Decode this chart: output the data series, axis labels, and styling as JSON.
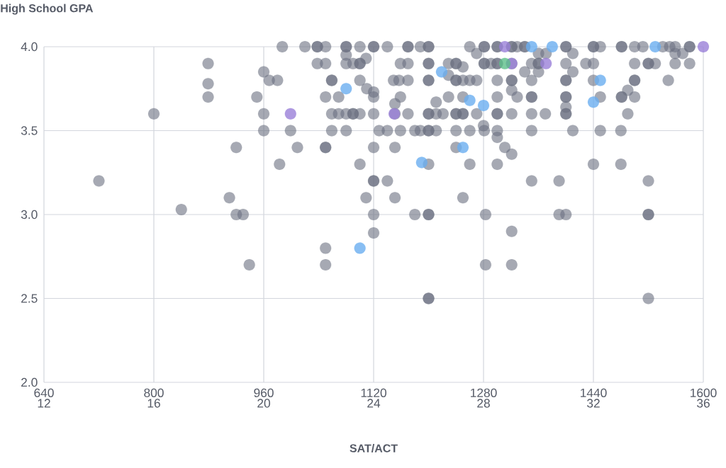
{
  "chart_data": {
    "type": "scatter",
    "ylabel": "High School GPA",
    "xlabel": "SAT/ACT",
    "xlim": [
      640,
      1600
    ],
    "xticks": [
      640,
      800,
      960,
      1120,
      1280,
      1440,
      1600
    ],
    "x2lim": [
      12,
      36
    ],
    "x2ticks": [
      12,
      16,
      20,
      24,
      28,
      32,
      36
    ],
    "ylim": [
      2,
      4
    ],
    "yticks": [
      {
        "value": 2,
        "label": "2.0"
      },
      {
        "value": 2.5,
        "label": "2.5"
      },
      {
        "value": 3,
        "label": "3.0"
      },
      {
        "value": 3.5,
        "label": "3.5"
      },
      {
        "value": 4,
        "label": "4.0"
      }
    ],
    "grid": true,
    "marker": "circle",
    "series": [
      {
        "color": "#6b7080",
        "x": [
          720,
          800,
          840,
          879,
          879,
          879,
          910,
          920,
          920,
          930,
          939,
          950,
          960,
          960,
          960,
          968,
          980,
          983,
          987,
          1020,
          1038,
          1038,
          1050,
          1080,
          1080,
          1100,
          1120,
          1120,
          1140,
          1170,
          1170,
          1188,
          1200,
          1200,
          1260,
          1080,
          1109,
          1270,
          1038,
          1050,
          1080,
          1090,
          1100,
          1100,
          1159,
          1170,
          1200,
          1200,
          1229,
          1240,
          1240,
          1250,
          1229,
          1059,
          1059,
          1100,
          1149,
          1157,
          1170,
          1200,
          1200,
          1240,
          1240,
          1250,
          1260,
          1270,
          1110,
          1120,
          1050,
          1069,
          1120,
          1159,
          1229,
          1250,
          1151,
          1211,
          1059,
          1069,
          1080,
          1090,
          1090,
          1100,
          1120,
          1151,
          1170,
          1200,
          1200,
          1211,
          1221,
          1240,
          1240,
          1250,
          1250,
          1270,
          1280,
          999,
          1059,
          1080,
          1128,
          1140,
          1159,
          1180,
          1188,
          1200,
          1200,
          1211,
          1240,
          1260,
          1009,
          1050,
          1050,
          1120,
          1151,
          1240,
          1100,
          1200,
          1260,
          1120,
          1120,
          1140,
          1109,
          1151,
          1250,
          1120,
          1180,
          1200,
          1200,
          1283,
          1120,
          1050,
          1050,
          1283,
          1200,
          1200,
          1520,
          1281,
          1281,
          1300,
          1300,
          1321,
          1321,
          1329,
          1340,
          1340,
          1400,
          1400,
          1440,
          1440,
          1450,
          1481,
          1481,
          1500,
          1512,
          1541,
          1551,
          1559,
          1580,
          1580,
          1360,
          1371,
          1410,
          1559,
          1570,
          1281,
          1281,
          1291,
          1300,
          1300,
          1321,
          1350,
          1360,
          1360,
          1400,
          1429,
          1440,
          1500,
          1520,
          1520,
          1530,
          1559,
          1580,
          1340,
          1360,
          1410,
          1300,
          1321,
          1321,
          1350,
          1400,
          1400,
          1440,
          1500,
          1500,
          1549,
          1321,
          1490,
          1300,
          1329,
          1350,
          1350,
          1400,
          1400,
          1450,
          1481,
          1481,
          1500,
          1400,
          1300,
          1300,
          1321,
          1350,
          1370,
          1400,
          1400,
          1490,
          1281,
          1300,
          1350,
          1410,
          1450,
          1480,
          1300,
          1311,
          1321,
          1300,
          1440,
          1480,
          1350,
          1390,
          1520,
          1390,
          1400,
          1520,
          1520,
          1321,
          1321
        ],
        "values": [
          3.2,
          3.6,
          3.03,
          3.9,
          3.78,
          3.7,
          3.1,
          3.4,
          3.0,
          3.0,
          2.7,
          3.7,
          3.85,
          3.6,
          3.5,
          3.8,
          3.8,
          3.3,
          4.0,
          4.0,
          4.0,
          4.0,
          4.0,
          4.0,
          4.0,
          4.0,
          4.0,
          4.0,
          4.0,
          4.0,
          4.0,
          4.0,
          4.0,
          4.0,
          4.0,
          3.95,
          3.93,
          3.96,
          3.9,
          3.9,
          3.9,
          3.9,
          3.9,
          3.9,
          3.9,
          3.9,
          3.9,
          3.9,
          3.9,
          3.9,
          3.9,
          3.88,
          3.83,
          3.8,
          3.8,
          3.8,
          3.8,
          3.8,
          3.8,
          3.8,
          3.8,
          3.8,
          3.8,
          3.8,
          3.8,
          3.8,
          3.75,
          3.73,
          3.7,
          3.7,
          3.7,
          3.7,
          3.7,
          3.7,
          3.66,
          3.67,
          3.6,
          3.6,
          3.6,
          3.6,
          3.6,
          3.6,
          3.6,
          3.6,
          3.6,
          3.6,
          3.6,
          3.6,
          3.6,
          3.6,
          3.6,
          3.6,
          3.6,
          3.6,
          3.53,
          3.5,
          3.5,
          3.5,
          3.5,
          3.5,
          3.5,
          3.5,
          3.5,
          3.5,
          3.5,
          3.5,
          3.5,
          3.5,
          3.4,
          3.4,
          3.4,
          3.4,
          3.4,
          3.4,
          3.3,
          3.3,
          3.3,
          3.2,
          3.2,
          3.2,
          3.1,
          3.1,
          3.1,
          3.0,
          3.0,
          3.0,
          3.0,
          3.0,
          2.89,
          2.8,
          2.7,
          2.7,
          2.5,
          2.5,
          2.5,
          4.0,
          4.0,
          4.0,
          4.0,
          4.0,
          4.0,
          4.0,
          4.0,
          4.0,
          4.0,
          4.0,
          4.0,
          4.0,
          4.0,
          4.0,
          4.0,
          4.0,
          4.0,
          4.0,
          4.0,
          4.0,
          4.0,
          4.0,
          3.96,
          3.96,
          3.96,
          3.96,
          3.96,
          3.9,
          3.9,
          3.9,
          3.9,
          3.9,
          3.9,
          3.9,
          3.9,
          3.9,
          3.9,
          3.9,
          3.9,
          3.9,
          3.9,
          3.9,
          3.9,
          3.9,
          3.9,
          3.85,
          3.85,
          3.85,
          3.8,
          3.8,
          3.8,
          3.8,
          3.8,
          3.8,
          3.8,
          3.8,
          3.8,
          3.8,
          3.74,
          3.74,
          3.7,
          3.7,
          3.7,
          3.7,
          3.7,
          3.7,
          3.7,
          3.7,
          3.7,
          3.7,
          3.64,
          3.6,
          3.6,
          3.6,
          3.6,
          3.6,
          3.6,
          3.6,
          3.6,
          3.5,
          3.5,
          3.5,
          3.5,
          3.5,
          3.5,
          3.46,
          3.4,
          3.36,
          3.3,
          3.3,
          3.3,
          3.2,
          3.2,
          3.2,
          3.0,
          3.0,
          3.0,
          3.0,
          2.9,
          2.7
        ]
      },
      {
        "color": "#6aaef0",
        "x": [
          1080,
          1219,
          1260,
          1280,
          1250,
          1190,
          1100,
          1350,
          1380,
          1530,
          1450,
          1440
        ],
        "values": [
          3.75,
          3.85,
          3.68,
          3.65,
          3.4,
          3.31,
          2.8,
          4.0,
          4.0,
          4.0,
          3.8,
          3.67
        ]
      },
      {
        "color": "#9a80d8",
        "x": [
          999,
          1150,
          1311,
          1321,
          1371,
          1600
        ],
        "values": [
          3.6,
          3.6,
          4.0,
          3.9,
          3.9,
          4.0
        ]
      },
      {
        "color": "#5cbf8a",
        "x": [
          1311
        ],
        "values": [
          3.9
        ]
      }
    ]
  }
}
